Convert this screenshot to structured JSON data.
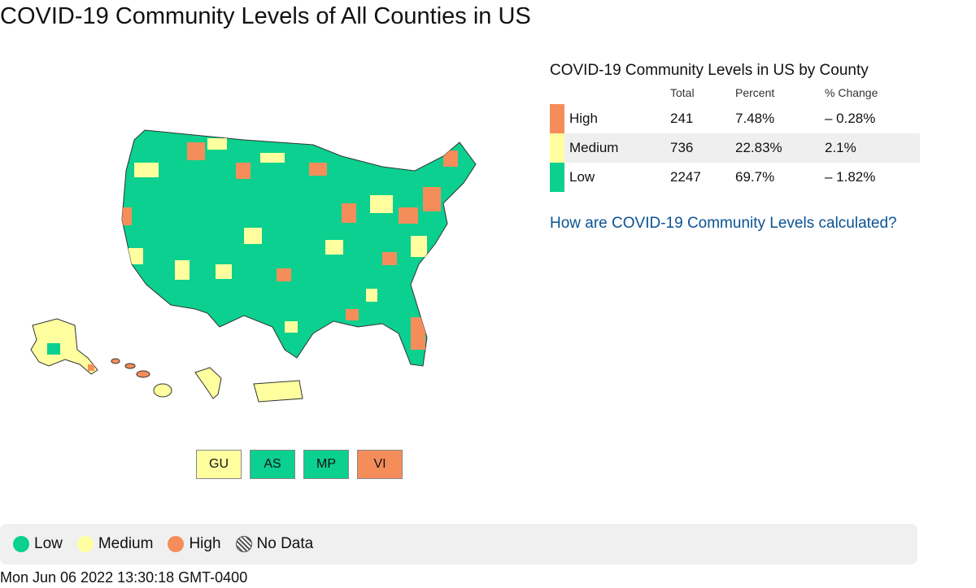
{
  "page": {
    "title": "COVID-19 Community Levels of All Counties in US"
  },
  "colors": {
    "high": "#f58d5b",
    "medium": "#ffff9f",
    "low": "#0bd08f",
    "link": "#0b5394"
  },
  "territories": [
    {
      "label": "GU",
      "level": "medium"
    },
    {
      "label": "AS",
      "level": "low"
    },
    {
      "label": "MP",
      "level": "low"
    },
    {
      "label": "VI",
      "level": "high"
    }
  ],
  "summary": {
    "title": "COVID-19 Community Levels in US by County",
    "headers": {
      "total": "Total",
      "percent": "Percent",
      "change": "% Change"
    },
    "rows": [
      {
        "level": "high",
        "label": "High",
        "total": "241",
        "percent": "7.48%",
        "change": "– 0.28%"
      },
      {
        "level": "medium",
        "label": "Medium",
        "total": "736",
        "percent": "22.83%",
        "change": "2.1%"
      },
      {
        "level": "low",
        "label": "Low",
        "total": "2247",
        "percent": "69.7%",
        "change": "– 1.82%"
      }
    ],
    "link": "How are COVID-19 Community Levels calculated?"
  },
  "legend": {
    "low": "Low",
    "medium": "Medium",
    "high": "High",
    "nodata": "No Data"
  },
  "timestamp": "Mon Jun 06 2022 13:30:18 GMT-0400"
}
